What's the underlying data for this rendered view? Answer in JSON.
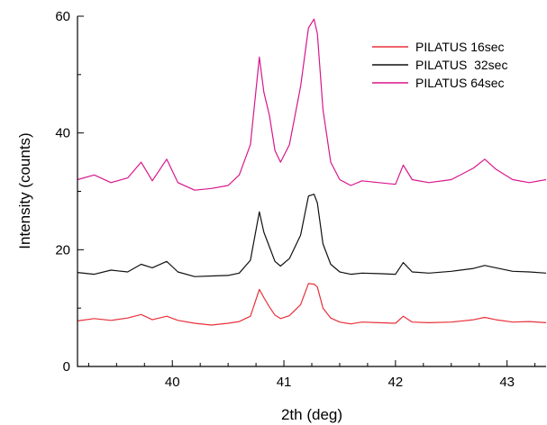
{
  "chart_data": {
    "type": "line",
    "xlabel": "2th (deg)",
    "ylabel": "Intensity (counts)",
    "xlim": [
      39.15,
      43.35
    ],
    "ylim": [
      0,
      60
    ],
    "x_ticks": [
      40,
      41,
      42,
      43
    ],
    "y_ticks": [
      0,
      20,
      40,
      60
    ],
    "grid": false,
    "legend_position": "top-right",
    "series": [
      {
        "name": "PILATUS 16sec",
        "color": "#e8303a",
        "x": [
          39.15,
          39.3,
          39.45,
          39.6,
          39.72,
          39.82,
          39.95,
          40.05,
          40.2,
          40.35,
          40.5,
          40.6,
          40.7,
          40.78,
          40.82,
          40.87,
          40.92,
          40.97,
          41.05,
          41.15,
          41.22,
          41.27,
          41.3,
          41.35,
          41.42,
          41.5,
          41.6,
          41.7,
          41.85,
          42.0,
          42.07,
          42.15,
          42.3,
          42.5,
          42.7,
          42.8,
          42.9,
          43.05,
          43.2,
          43.35
        ],
        "values": [
          7.8,
          8.2,
          7.9,
          8.3,
          8.9,
          8.0,
          8.6,
          7.9,
          7.4,
          7.1,
          7.4,
          7.7,
          8.6,
          13.2,
          11.8,
          10.2,
          8.8,
          8.2,
          8.7,
          10.6,
          14.2,
          14.1,
          13.6,
          10.0,
          8.3,
          7.6,
          7.3,
          7.6,
          7.5,
          7.4,
          8.6,
          7.6,
          7.5,
          7.6,
          8.0,
          8.4,
          8.0,
          7.6,
          7.7,
          7.5
        ]
      },
      {
        "name": "PILATUS  32sec",
        "color": "#111111",
        "x": [
          39.15,
          39.3,
          39.45,
          39.6,
          39.72,
          39.82,
          39.95,
          40.05,
          40.2,
          40.35,
          40.5,
          40.6,
          40.7,
          40.78,
          40.82,
          40.87,
          40.92,
          40.97,
          41.05,
          41.15,
          41.22,
          41.27,
          41.3,
          41.35,
          41.42,
          41.5,
          41.6,
          41.7,
          41.85,
          42.0,
          42.07,
          42.15,
          42.3,
          42.5,
          42.7,
          42.8,
          42.9,
          43.05,
          43.2,
          43.35
        ],
        "values": [
          16.1,
          15.8,
          16.5,
          16.2,
          17.5,
          16.9,
          18.0,
          16.2,
          15.4,
          15.5,
          15.6,
          16.0,
          18.2,
          26.5,
          23.0,
          20.5,
          18.0,
          17.2,
          18.5,
          22.5,
          29.2,
          29.5,
          28.0,
          21.0,
          17.5,
          16.2,
          15.8,
          16.0,
          15.9,
          15.8,
          17.8,
          16.2,
          16.0,
          16.3,
          16.8,
          17.3,
          16.9,
          16.3,
          16.2,
          16.0
        ]
      },
      {
        "name": "PILATUS 64sec",
        "color": "#d8168c",
        "x": [
          39.15,
          39.3,
          39.45,
          39.6,
          39.72,
          39.82,
          39.95,
          40.05,
          40.2,
          40.35,
          40.5,
          40.6,
          40.7,
          40.78,
          40.82,
          40.87,
          40.92,
          40.97,
          41.05,
          41.15,
          41.22,
          41.27,
          41.3,
          41.35,
          41.42,
          41.5,
          41.6,
          41.7,
          41.85,
          42.0,
          42.07,
          42.15,
          42.3,
          42.5,
          42.7,
          42.8,
          42.9,
          43.05,
          43.2,
          43.35
        ],
        "values": [
          32.0,
          32.8,
          31.5,
          32.3,
          35.0,
          31.8,
          35.5,
          31.5,
          30.2,
          30.5,
          31.0,
          32.8,
          38.0,
          53.0,
          47.0,
          43.0,
          37.0,
          35.0,
          38.0,
          48.0,
          58.0,
          59.5,
          57.0,
          44.0,
          35.0,
          32.0,
          31.0,
          31.8,
          31.5,
          31.2,
          34.5,
          32.0,
          31.5,
          32.0,
          34.0,
          35.5,
          33.8,
          32.0,
          31.5,
          32.0
        ]
      }
    ]
  }
}
